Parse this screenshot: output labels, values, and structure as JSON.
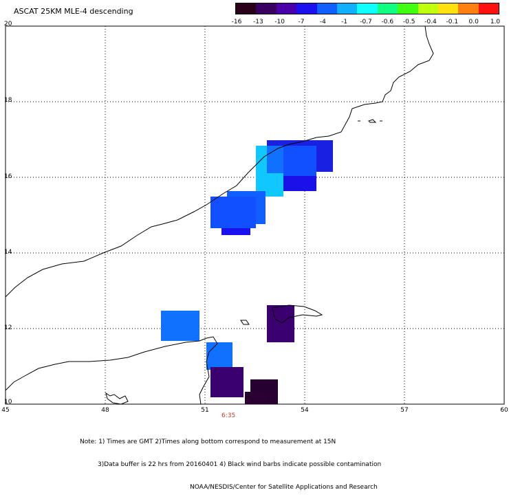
{
  "title": "ASCAT 25KM MLE-4 descending",
  "colorbar": {
    "labels": [
      "-16",
      "-13",
      "-10",
      "-7",
      "-4",
      "-1",
      "-0.7",
      "-0.6",
      "-0.5",
      "-0.4",
      "-0.1",
      "0.0",
      "1.0"
    ],
    "colors": [
      "#2a0018",
      "#3a0060",
      "#4a00a8",
      "#1a10f0",
      "#1060ff",
      "#10b0ff",
      "#10ffff",
      "#10ff80",
      "#40ff10",
      "#c0ff10",
      "#ffe010",
      "#ff8010",
      "#ff1010"
    ]
  },
  "map": {
    "lat_labels": [
      "20",
      "18",
      "16",
      "14",
      "12",
      "10"
    ],
    "lon_labels": [
      "45",
      "48",
      "51",
      "54",
      "57",
      "60"
    ],
    "time_label": "6:35",
    "legend_note_colors": {
      "black": "#000000",
      "deep_purple": "#250030",
      "purple": "#3a0070",
      "blue": "#1a20e0",
      "mid_blue": "#1050ff",
      "light_blue": "#1080ff",
      "cyan": "#10c8ff"
    }
  },
  "notes": {
    "line1": "Note: 1) Times are GMT 2)Times along bottom correspond to measurement at 15N",
    "line2": "3)Data buffer is 22 hrs from 20160401 4) Black wind barbs indicate possible contamination",
    "line3": "NOAA/NESDIS/Center for Satellite Applications and Research"
  }
}
